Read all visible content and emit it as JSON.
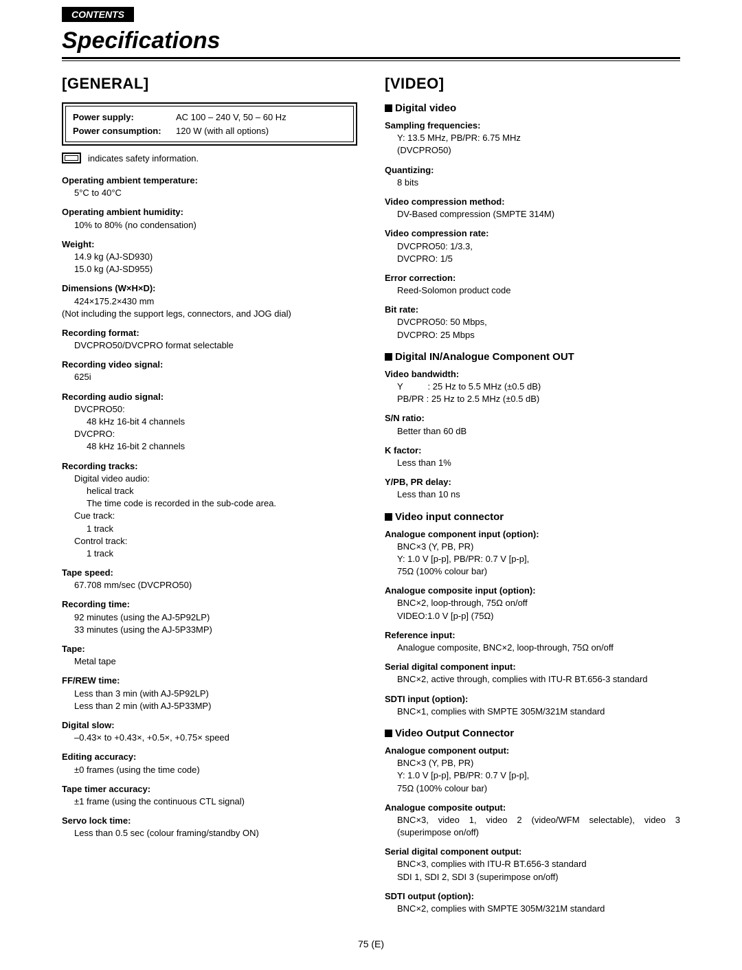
{
  "header": {
    "contentsTab": "CONTENTS",
    "title": "Specifications"
  },
  "pageNumber": "75 (E)",
  "general": {
    "heading": "[GENERAL]",
    "powerSupplyLabel": "Power supply:",
    "powerSupplyValue": "AC 100 – 240 V, 50 – 60 Hz",
    "powerConsumptionLabel": "Power consumption:",
    "powerConsumptionValue": "120 W (with all options)",
    "safetyNote": "indicates safety information.",
    "specs": [
      {
        "label": "Operating ambient temperature:",
        "values": [
          "5°C to 40°C"
        ]
      },
      {
        "label": "Operating ambient humidity:",
        "values": [
          "10% to 80% (no condensation)"
        ]
      },
      {
        "label": "Weight:",
        "values": [
          "14.9 kg (AJ-SD930)",
          "15.0 kg (AJ-SD955)"
        ]
      },
      {
        "label": "Dimensions (W×H×D):",
        "values": [
          "424×175.2×430 mm",
          "(Not including the support legs, connectors, and JOG dial)"
        ],
        "noIndentFrom": 1
      },
      {
        "label": "Recording format:",
        "values": [
          "DVCPRO50/DVCPRO format selectable"
        ]
      },
      {
        "label": "Recording video signal:",
        "values": [
          "625i"
        ]
      },
      {
        "label": "Recording audio signal:",
        "values": [
          "DVCPRO50:",
          "  48 kHz 16-bit 4 channels",
          "DVCPRO:",
          "  48 kHz 16-bit 2 channels"
        ]
      },
      {
        "label": "Recording tracks:",
        "values": [
          "Digital video audio:",
          "  helical track",
          "  The time code is recorded in the sub-code area.",
          "Cue track:",
          "  1 track",
          "Control track:",
          "  1 track"
        ]
      },
      {
        "label": "Tape speed:",
        "values": [
          "67.708 mm/sec (DVCPRO50)"
        ]
      },
      {
        "label": "Recording time:",
        "values": [
          "92 minutes (using the AJ-5P92LP)",
          "33 minutes (using the AJ-5P33MP)"
        ]
      },
      {
        "label": "Tape:",
        "values": [
          "Metal tape"
        ]
      },
      {
        "label": "FF/REW time:",
        "values": [
          "Less than 3 min (with AJ-5P92LP)",
          "Less than 2 min (with AJ-5P33MP)"
        ]
      },
      {
        "label": "Digital slow:",
        "values": [
          "–0.43× to +0.43×, +0.5×, +0.75× speed"
        ]
      },
      {
        "label": "Editing accuracy:",
        "values": [
          "±0 frames (using the time code)"
        ]
      },
      {
        "label": "Tape timer accuracy:",
        "values": [
          "±1 frame (using the continuous CTL signal)"
        ]
      },
      {
        "label": "Servo lock time:",
        "values": [
          "Less than 0.5 sec (colour framing/standby ON)"
        ]
      }
    ]
  },
  "video": {
    "heading": "[VIDEO]",
    "subsections": [
      {
        "title": "Digital video",
        "specs": [
          {
            "label": "Sampling frequencies:",
            "values": [
              "Y: 13.5 MHz, PB/PR: 6.75 MHz",
              "(DVCPRO50)"
            ]
          },
          {
            "label": "Quantizing:",
            "values": [
              "8 bits"
            ]
          },
          {
            "label": "Video compression method:",
            "values": [
              "DV-Based compression (SMPTE 314M)"
            ]
          },
          {
            "label": "Video compression rate:",
            "values": [
              "DVCPRO50: 1/3.3,",
              "DVCPRO: 1/5"
            ]
          },
          {
            "label": "Error correction:",
            "values": [
              "Reed-Solomon product code"
            ]
          },
          {
            "label": "Bit rate:",
            "values": [
              "DVCPRO50: 50 Mbps,",
              "DVCPRO: 25 Mbps"
            ]
          }
        ]
      },
      {
        "title": "Digital IN/Analogue Component OUT",
        "specs": [
          {
            "label": "Video bandwidth:",
            "values": [
              "Y          : 25 Hz to 5.5 MHz (±0.5 dB)",
              "PB/PR : 25 Hz to 2.5 MHz (±0.5 dB)"
            ]
          },
          {
            "label": "S/N ratio:",
            "values": [
              "Better than 60 dB"
            ]
          },
          {
            "label": "K factor:",
            "values": [
              "Less than 1%"
            ]
          },
          {
            "label": "Y/PB, PR delay:",
            "values": [
              "Less than 10 ns"
            ]
          }
        ]
      },
      {
        "title": "Video input connector",
        "specs": [
          {
            "label": "Analogue component input (option):",
            "values": [
              "BNC×3 (Y, PB, PR)",
              "Y: 1.0 V [p-p], PB/PR: 0.7 V [p-p],",
              "75Ω (100% colour bar)"
            ]
          },
          {
            "label": "Analogue composite input (option):",
            "values": [
              "BNC×2, loop-through, 75Ω on/off",
              "VIDEO:1.0 V [p-p] (75Ω)"
            ]
          },
          {
            "label": "Reference input:",
            "values": [
              "Analogue composite, BNC×2, loop-through, 75Ω on/off"
            ]
          },
          {
            "label": "Serial digital component input:",
            "values": [
              "BNC×2, active through, complies with ITU-R BT.656-3 standard"
            ],
            "justify": true
          },
          {
            "label": "SDTI input (option):",
            "values": [
              "BNC×1, complies with SMPTE 305M/321M standard"
            ]
          }
        ]
      },
      {
        "title": "Video Output Connector",
        "specs": [
          {
            "label": "Analogue component output:",
            "values": [
              "BNC×3 (Y, PB, PR)",
              "Y: 1.0 V [p-p], PB/PR: 0.7 V [p-p],",
              "75Ω (100% colour bar)"
            ]
          },
          {
            "label": "Analogue composite output:",
            "values": [
              "BNC×3, video 1, video 2 (video/WFM selectable), video 3 (superimpose on/off)"
            ],
            "justify": true
          },
          {
            "label": "Serial digital component output:",
            "values": [
              "BNC×3, complies with ITU-R BT.656-3 standard",
              "SDI 1, SDI 2, SDI 3 (superimpose on/off)"
            ]
          },
          {
            "label": "SDTI output (option):",
            "values": [
              "BNC×2, complies with SMPTE 305M/321M standard"
            ]
          }
        ]
      }
    ]
  }
}
